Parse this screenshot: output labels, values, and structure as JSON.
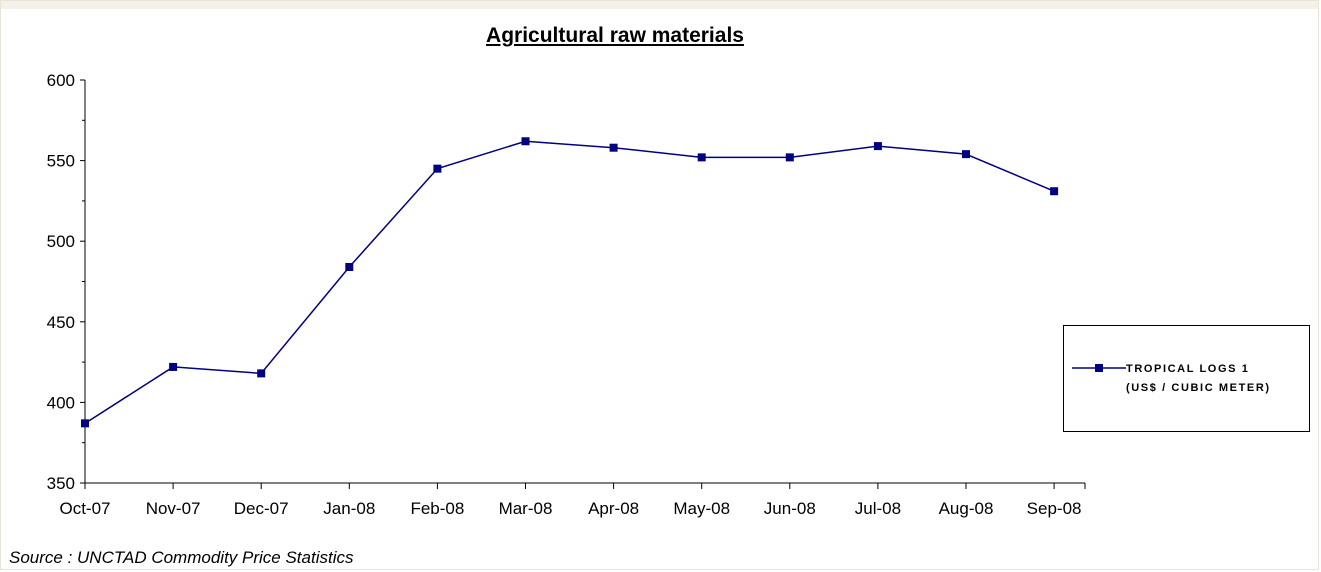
{
  "chart_data": {
    "type": "line",
    "title": "Agricultural raw materials",
    "xlabel": "",
    "ylabel": "",
    "categories": [
      "Oct-07",
      "Nov-07",
      "Dec-07",
      "Jan-08",
      "Feb-08",
      "Mar-08",
      "Apr-08",
      "May-08",
      "Jun-08",
      "Jul-08",
      "Aug-08",
      "Sep-08"
    ],
    "y_ticks": [
      350,
      400,
      450,
      500,
      550,
      600
    ],
    "ylim": [
      350,
      600
    ],
    "grid": false,
    "legend_position": "right",
    "series": [
      {
        "name": "TROPICAL LOGS 1 (US$ / CUBIC METER)",
        "name_lines": [
          "TROPICAL LOGS 1",
          "(US$ / CUBIC METER)"
        ],
        "color": "#000080",
        "marker": "square",
        "x_dates": [
          "2007-10-01",
          "2007-11-01",
          "2007-12-01",
          "2008-01-01",
          "2008-02-01",
          "2008-03-01",
          "2008-04-01",
          "2008-05-01",
          "2008-06-01",
          "2008-07-01",
          "2008-08-01",
          "2008-09-01"
        ],
        "values": [
          387,
          422,
          418,
          484,
          545,
          562,
          558,
          552,
          552,
          559,
          554,
          531
        ]
      }
    ]
  },
  "source_note": "Source : UNCTAD Commodity Price Statistics"
}
